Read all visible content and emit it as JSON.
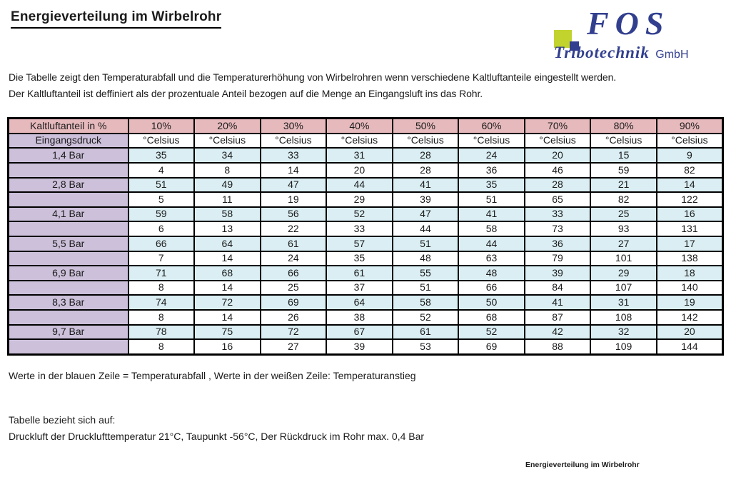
{
  "page": {
    "title": "Energieverteilung im Wirbelrohr",
    "intro_line1": "Die Tabelle zeigt den Temperaturabfall und die Temperaturerhöhung von Wirbelrohren wenn verschiedene Kaltluftanteile eingestellt werden.",
    "intro_line2": "Der Kaltluftanteil ist deffiniert als der prozentuale Anteil bezogen auf die Menge an Eingangsluft ins das Rohr.",
    "note": "Werte in der blauen Zeile = Temperaturabfall , Werte in der weißen Zeile: Temperaturanstieg",
    "basis_title": "Tabelle bezieht sich auf:",
    "basis_text": "Druckluft der Drucklufttemperatur 21°C, Taupunkt -56°C, Der Rückdruck im Rohr max. 0,4 Bar",
    "footer": "Energieverteilung im Wirbelrohr"
  },
  "logo": {
    "name": "FOS",
    "subtitle": "Tribotechnik",
    "suffix": "GmbH",
    "colors": {
      "blue": "#323F8F",
      "green": "#C2D32E"
    }
  },
  "table": {
    "header_label": "Kaltluftanteil in %",
    "percent_columns": [
      "10%",
      "20%",
      "30%",
      "40%",
      "50%",
      "60%",
      "70%",
      "80%",
      "90%"
    ],
    "subheader_label": "Eingangsdruck",
    "unit_label": "°Celsius",
    "colors": {
      "header_pink": "#E6B9BC",
      "left_purple": "#CCC0DA",
      "row_blue": "#DAEEF3",
      "row_white": "#FFFFFF"
    },
    "rows": [
      {
        "pressure": "1,4 Bar",
        "drop": [
          35,
          34,
          33,
          31,
          28,
          24,
          20,
          15,
          9
        ],
        "rise": [
          4,
          8,
          14,
          20,
          28,
          36,
          46,
          59,
          82
        ]
      },
      {
        "pressure": "2,8 Bar",
        "drop": [
          51,
          49,
          47,
          44,
          41,
          35,
          28,
          21,
          14
        ],
        "rise": [
          5,
          11,
          19,
          29,
          39,
          51,
          65,
          82,
          122
        ]
      },
      {
        "pressure": "4,1 Bar",
        "drop": [
          59,
          58,
          56,
          52,
          47,
          41,
          33,
          25,
          16
        ],
        "rise": [
          6,
          13,
          22,
          33,
          44,
          58,
          73,
          93,
          131
        ]
      },
      {
        "pressure": "5,5 Bar",
        "drop": [
          66,
          64,
          61,
          57,
          51,
          44,
          36,
          27,
          17
        ],
        "rise": [
          7,
          14,
          24,
          35,
          48,
          63,
          79,
          101,
          138
        ]
      },
      {
        "pressure": "6,9 Bar",
        "drop": [
          71,
          68,
          66,
          61,
          55,
          48,
          39,
          29,
          18
        ],
        "rise": [
          8,
          14,
          25,
          37,
          51,
          66,
          84,
          107,
          140
        ]
      },
      {
        "pressure": "8,3 Bar",
        "drop": [
          74,
          72,
          69,
          64,
          58,
          50,
          41,
          31,
          19
        ],
        "rise": [
          8,
          14,
          26,
          38,
          52,
          68,
          87,
          108,
          142
        ]
      },
      {
        "pressure": "9,7 Bar",
        "drop": [
          78,
          75,
          72,
          67,
          61,
          52,
          42,
          32,
          20
        ],
        "rise": [
          8,
          16,
          27,
          39,
          53,
          69,
          88,
          109,
          144
        ]
      }
    ]
  }
}
